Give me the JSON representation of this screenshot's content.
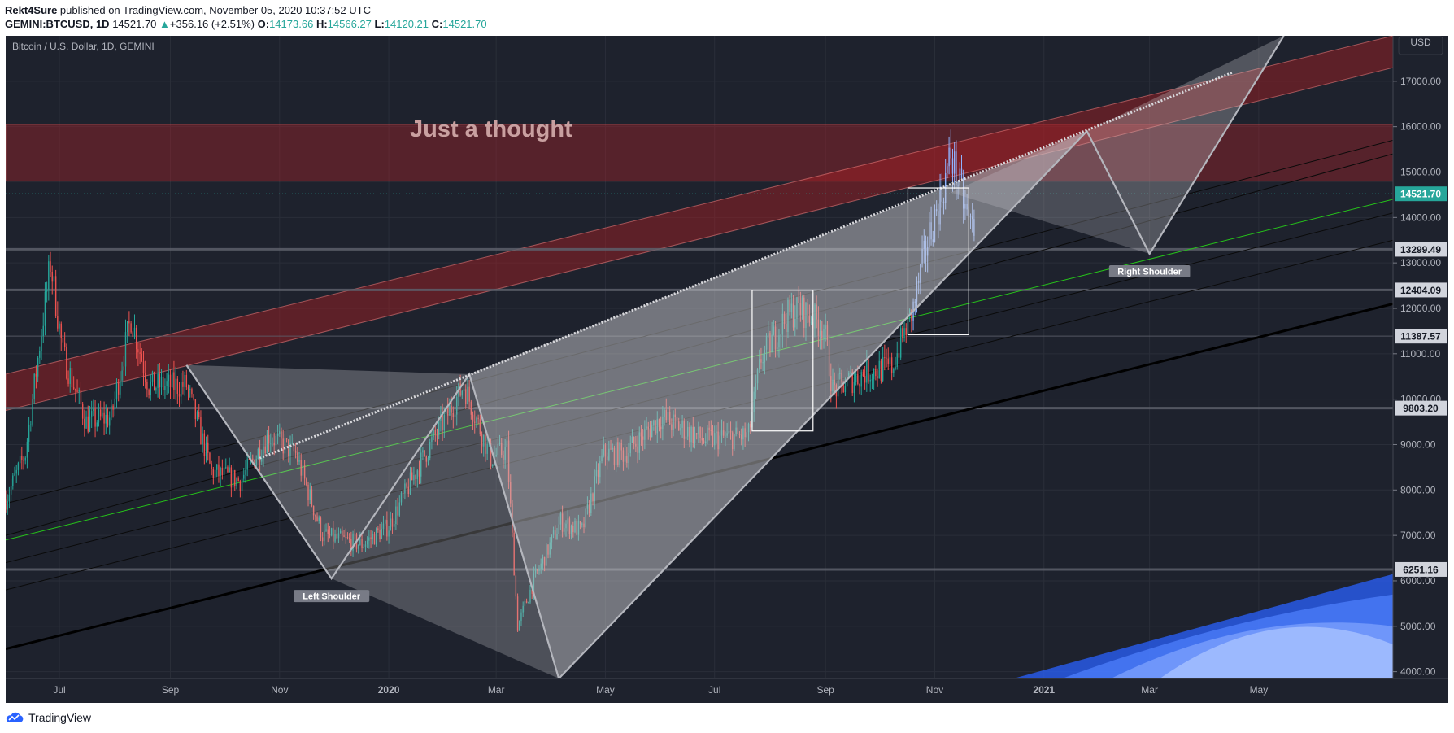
{
  "header": {
    "author": "Rekt4Sure",
    "published_text": " published on TradingView.com, November 05, 2020 10:37:52 UTC",
    "symbol": "GEMINI:BTCUSD, 1D",
    "last": "14521.70",
    "change": "+356.16 (+2.51%)",
    "o_label": "O:",
    "o_value": "14173.66",
    "h_label": "H:",
    "h_value": "14566.27",
    "l_label": "L:",
    "l_value": "14120.21",
    "c_label": "C:",
    "c_value": "14521.70"
  },
  "chart_data": {
    "type": "candlestick",
    "title": "Bitcoin / U.S. Dollar, 1D, GEMINI",
    "annotation": "Just a thought",
    "currency": "USD",
    "x_tick_labels": [
      "Jul",
      "Sep",
      "Nov",
      "2020",
      "Mar",
      "May",
      "Jul",
      "Sep",
      "Nov",
      "2021",
      "Mar",
      "May"
    ],
    "x_tick_dates": [
      "2019-07-01",
      "2019-09-01",
      "2019-11-01",
      "2020-01-01",
      "2020-03-01",
      "2020-05-01",
      "2020-07-01",
      "2020-09-01",
      "2020-11-01",
      "2021-01-01",
      "2021-03-01",
      "2021-05-01"
    ],
    "y_ticks": [
      4000,
      5000,
      6000,
      7000,
      8000,
      9000,
      10000,
      11000,
      12000,
      13000,
      14000,
      15000,
      16000,
      17000
    ],
    "y_tick_labels": [
      "4000.00",
      "5000.00",
      "6000.00",
      "7000.00",
      "8000.00",
      "9000.00",
      "10000.00",
      "11000.00",
      "12000.00",
      "13000.00",
      "14000.00",
      "15000.00",
      "16000.00",
      "17000.00"
    ],
    "ylim": [
      3850,
      18000
    ],
    "xlim": [
      "2019-06-01",
      "2021-07-15"
    ],
    "price_levels": [
      {
        "value": 14521.7,
        "label": "14521.70",
        "kind": "last"
      },
      {
        "value": 13299.49,
        "label": "13299.49",
        "kind": "level"
      },
      {
        "value": 12404.09,
        "label": "12404.09",
        "kind": "level"
      },
      {
        "value": 11387.57,
        "label": "11387.57",
        "kind": "level"
      },
      {
        "value": 9803.2,
        "label": "9803.20",
        "kind": "level"
      },
      {
        "value": 6251.16,
        "label": "6251.16",
        "kind": "level"
      }
    ],
    "resistance_zone": [
      14800,
      16050
    ],
    "rising_band": {
      "start": [
        "2019-06-01",
        9750,
        10550
      ],
      "end": [
        "2021-07-15",
        17300,
        18000
      ]
    },
    "zigzag_pattern": [
      [
        "2019-09-10",
        10750
      ],
      [
        "2019-11-30",
        6050
      ],
      [
        "2020-02-15",
        10550
      ],
      [
        "2020-04-05",
        3850
      ],
      [
        "2021-01-25",
        15900
      ],
      [
        "2021-03-01",
        13200
      ],
      [
        "2021-05-15",
        18000
      ]
    ],
    "highlight_boxes": [
      {
        "from": "2020-07-22",
        "to": "2020-08-25",
        "low": 9300,
        "high": 12400
      },
      {
        "from": "2020-10-17",
        "to": "2020-11-20",
        "low": 11420,
        "high": 14650
      }
    ],
    "pattern_labels": [
      {
        "text": "Left Shoulder",
        "date": "2019-11-30",
        "value": 6050
      },
      {
        "text": "Right Shoulder",
        "date": "2021-03-01",
        "value": 13200
      }
    ],
    "price_anchors": [
      [
        "2019-06-01",
        7800
      ],
      [
        "2019-06-12",
        8800
      ],
      [
        "2019-06-26",
        13000
      ],
      [
        "2019-07-03",
        11000
      ],
      [
        "2019-07-16",
        9500
      ],
      [
        "2019-07-30",
        9600
      ],
      [
        "2019-08-10",
        11800
      ],
      [
        "2019-08-20",
        10300
      ],
      [
        "2019-09-10",
        10300
      ],
      [
        "2019-09-24",
        8400
      ],
      [
        "2019-10-10",
        8200
      ],
      [
        "2019-10-26",
        9200
      ],
      [
        "2019-11-10",
        8800
      ],
      [
        "2019-11-25",
        7000
      ],
      [
        "2019-12-17",
        6800
      ],
      [
        "2020-01-01",
        7200
      ],
      [
        "2020-01-20",
        8700
      ],
      [
        "2020-02-12",
        10300
      ],
      [
        "2020-02-27",
        8700
      ],
      [
        "2020-03-07",
        8900
      ],
      [
        "2020-03-13",
        5000
      ],
      [
        "2020-03-22",
        6000
      ],
      [
        "2020-04-06",
        7300
      ],
      [
        "2020-04-18",
        7100
      ],
      [
        "2020-04-30",
        8800
      ],
      [
        "2020-05-12",
        8800
      ],
      [
        "2020-06-01",
        9600
      ],
      [
        "2020-06-25",
        9100
      ],
      [
        "2020-07-20",
        9200
      ],
      [
        "2020-07-27",
        10900
      ],
      [
        "2020-08-10",
        11800
      ],
      [
        "2020-08-17",
        12000
      ],
      [
        "2020-08-31",
        11600
      ],
      [
        "2020-09-05",
        10200
      ],
      [
        "2020-09-24",
        10600
      ],
      [
        "2020-10-08",
        10700
      ],
      [
        "2020-10-20",
        12000
      ],
      [
        "2020-10-28",
        13500
      ],
      [
        "2020-11-05",
        14500
      ],
      [
        "2020-11-10",
        15400
      ],
      [
        "2020-11-20",
        13900
      ],
      [
        "2020-11-24",
        13800
      ]
    ]
  },
  "footer": {
    "brand": "TradingView"
  }
}
